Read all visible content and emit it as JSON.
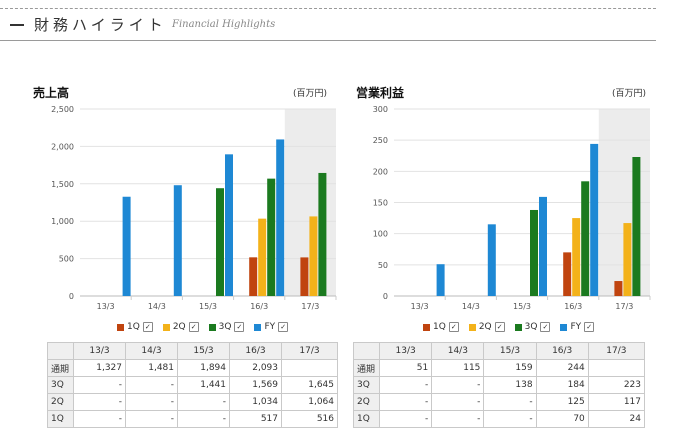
{
  "header": {
    "title": "財務ハイライト",
    "subtitle": "Financial Highlights"
  },
  "colors": {
    "1Q": "#c0440f",
    "2Q": "#f3b21a",
    "3Q": "#1b7a1f",
    "FY": "#1e88d4",
    "forecast_bg": "#ececec"
  },
  "legend": [
    {
      "key": "1Q",
      "label": "1Q"
    },
    {
      "key": "2Q",
      "label": "2Q"
    },
    {
      "key": "3Q",
      "label": "3Q"
    },
    {
      "key": "FY",
      "label": "FY"
    }
  ],
  "chart_data": [
    {
      "type": "bar",
      "title": "売上高",
      "unit": "(百万円)",
      "categories": [
        "13/3",
        "14/3",
        "15/3",
        "16/3",
        "17/3"
      ],
      "ylim": [
        0,
        2500
      ],
      "yticks": [
        "0",
        "500",
        "1,000",
        "1,500",
        "2,000",
        "2,500"
      ],
      "ytick_values": [
        0,
        500,
        1000,
        1500,
        2000,
        2500
      ],
      "shaded_category": "17/3",
      "series": [
        {
          "name": "1Q",
          "values": [
            null,
            null,
            null,
            517,
            516
          ]
        },
        {
          "name": "2Q",
          "values": [
            null,
            null,
            null,
            1034,
            1064
          ]
        },
        {
          "name": "3Q",
          "values": [
            null,
            null,
            1441,
            1569,
            1645
          ]
        },
        {
          "name": "FY",
          "values": [
            1327,
            1481,
            1894,
            2093,
            null
          ]
        }
      ]
    },
    {
      "type": "bar",
      "title": "営業利益",
      "unit": "(百万円)",
      "categories": [
        "13/3",
        "14/3",
        "15/3",
        "16/3",
        "17/3"
      ],
      "ylim": [
        0,
        300
      ],
      "yticks": [
        "0",
        "50",
        "100",
        "150",
        "200",
        "250",
        "300"
      ],
      "ytick_values": [
        0,
        50,
        100,
        150,
        200,
        250,
        300
      ],
      "shaded_category": "17/3",
      "series": [
        {
          "name": "1Q",
          "values": [
            null,
            null,
            null,
            70,
            24
          ]
        },
        {
          "name": "2Q",
          "values": [
            null,
            null,
            null,
            125,
            117
          ]
        },
        {
          "name": "3Q",
          "values": [
            null,
            null,
            138,
            184,
            223
          ]
        },
        {
          "name": "FY",
          "values": [
            51,
            115,
            159,
            244,
            null
          ]
        }
      ]
    }
  ],
  "tables": [
    {
      "columns": [
        "",
        "13/3",
        "14/3",
        "15/3",
        "16/3",
        "17/3"
      ],
      "rows": [
        {
          "label": "通期",
          "cells": [
            "1,327",
            "1,481",
            "1,894",
            "2,093",
            ""
          ]
        },
        {
          "label": "3Q",
          "cells": [
            "-",
            "-",
            "1,441",
            "1,569",
            "1,645"
          ]
        },
        {
          "label": "2Q",
          "cells": [
            "-",
            "-",
            "-",
            "1,034",
            "1,064"
          ]
        },
        {
          "label": "1Q",
          "cells": [
            "-",
            "-",
            "-",
            "517",
            "516"
          ]
        }
      ]
    },
    {
      "columns": [
        "",
        "13/3",
        "14/3",
        "15/3",
        "16/3",
        "17/3"
      ],
      "rows": [
        {
          "label": "通期",
          "cells": [
            "51",
            "115",
            "159",
            "244",
            ""
          ]
        },
        {
          "label": "3Q",
          "cells": [
            "-",
            "-",
            "138",
            "184",
            "223"
          ]
        },
        {
          "label": "2Q",
          "cells": [
            "-",
            "-",
            "-",
            "125",
            "117"
          ]
        },
        {
          "label": "1Q",
          "cells": [
            "-",
            "-",
            "-",
            "70",
            "24"
          ]
        }
      ]
    }
  ]
}
